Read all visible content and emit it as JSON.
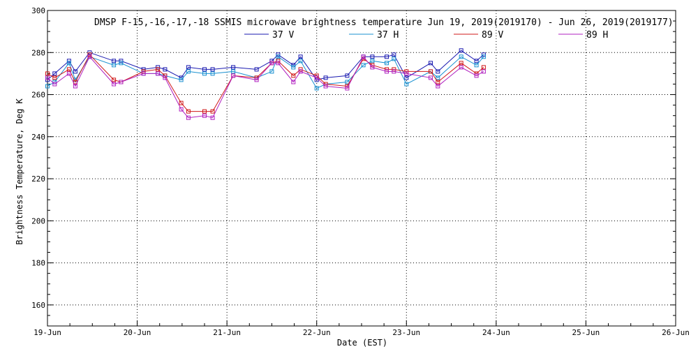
{
  "chart_data": {
    "type": "line",
    "title": "DMSP F-15,-16,-17,-18 SSMIS microwave brightness temperature Jun 19, 2019(2019170) - Jun 26, 2019(2019177)",
    "xlabel": "Date (EST)",
    "ylabel": "Brightness Temperature, Deg K",
    "xlim": [
      0,
      7
    ],
    "ylim": [
      150,
      300
    ],
    "grid": true,
    "legend_position": "top",
    "x_tick_values": [
      0,
      1,
      2,
      3,
      4,
      5,
      6,
      7
    ],
    "x_tick_labels": [
      "19-Jun",
      "20-Jun",
      "21-Jun",
      "22-Jun",
      "23-Jun",
      "24-Jun",
      "25-Jun",
      "26-Jun"
    ],
    "y_tick_values": [
      160,
      180,
      200,
      220,
      240,
      260,
      280,
      300
    ],
    "y_tick_labels": [
      "160",
      "180",
      "200",
      "220",
      "240",
      "260",
      "280",
      "300"
    ],
    "series": [
      {
        "name": "37 V",
        "color": "#1a1ab0",
        "x": [
          0.0,
          0.08,
          0.24,
          0.31,
          0.47,
          0.74,
          0.82,
          1.07,
          1.23,
          1.31,
          1.49,
          1.57,
          1.75,
          1.84,
          2.07,
          2.33,
          2.5,
          2.57,
          2.74,
          2.82,
          3.0,
          3.1,
          3.34,
          3.52,
          3.62,
          3.78,
          3.86,
          4.0,
          4.27,
          4.35,
          4.61,
          4.78,
          4.86
        ],
        "y": [
          267,
          270,
          276,
          271,
          280,
          276,
          276,
          272,
          273,
          272,
          268,
          273,
          272,
          272,
          273,
          272,
          276,
          279,
          274,
          278,
          267,
          268,
          269,
          278,
          278,
          278,
          279,
          268,
          275,
          271,
          281,
          276,
          279
        ]
      },
      {
        "name": "37 H",
        "color": "#1890d0",
        "x": [
          0.0,
          0.08,
          0.24,
          0.31,
          0.47,
          0.74,
          0.82,
          1.07,
          1.23,
          1.31,
          1.49,
          1.57,
          1.75,
          1.84,
          2.07,
          2.33,
          2.5,
          2.57,
          2.74,
          2.82,
          3.0,
          3.1,
          3.34,
          3.52,
          3.62,
          3.78,
          3.86,
          4.0,
          4.27,
          4.35,
          4.61,
          4.78,
          4.86
        ],
        "y": [
          264,
          266,
          275,
          267,
          278,
          274,
          275,
          270,
          270,
          269,
          267,
          271,
          270,
          270,
          271,
          268,
          271,
          278,
          273,
          276,
          263,
          265,
          266,
          274,
          276,
          275,
          277,
          265,
          271,
          268,
          278,
          274,
          278
        ]
      },
      {
        "name": "89 V",
        "color": "#d01818",
        "x": [
          0.0,
          0.08,
          0.24,
          0.31,
          0.47,
          0.74,
          0.82,
          1.07,
          1.23,
          1.31,
          1.49,
          1.57,
          1.75,
          1.84,
          2.07,
          2.33,
          2.5,
          2.57,
          2.74,
          2.82,
          3.0,
          3.1,
          3.34,
          3.52,
          3.62,
          3.78,
          3.86,
          4.0,
          4.27,
          4.35,
          4.61,
          4.78,
          4.86
        ],
        "y": [
          270,
          268,
          272,
          266,
          279,
          267,
          266,
          271,
          272,
          269,
          256,
          252,
          252,
          252,
          269,
          268,
          275,
          276,
          269,
          272,
          269,
          265,
          264,
          277,
          274,
          272,
          272,
          271,
          271,
          266,
          275,
          270,
          273
        ]
      },
      {
        "name": "89 H",
        "color": "#b020c0",
        "x": [
          0.0,
          0.08,
          0.24,
          0.31,
          0.47,
          0.74,
          0.82,
          1.07,
          1.23,
          1.31,
          1.49,
          1.57,
          1.75,
          1.84,
          2.07,
          2.33,
          2.5,
          2.57,
          2.74,
          2.82,
          3.0,
          3.1,
          3.34,
          3.52,
          3.62,
          3.78,
          3.86,
          4.0,
          4.27,
          4.35,
          4.61,
          4.78,
          4.86
        ],
        "y": [
          268,
          265,
          270,
          264,
          278,
          265,
          266,
          270,
          270,
          268,
          253,
          249,
          250,
          249,
          269,
          267,
          275,
          275,
          266,
          271,
          268,
          264,
          263,
          278,
          273,
          271,
          271,
          270,
          268,
          264,
          273,
          269,
          271
        ]
      }
    ]
  }
}
